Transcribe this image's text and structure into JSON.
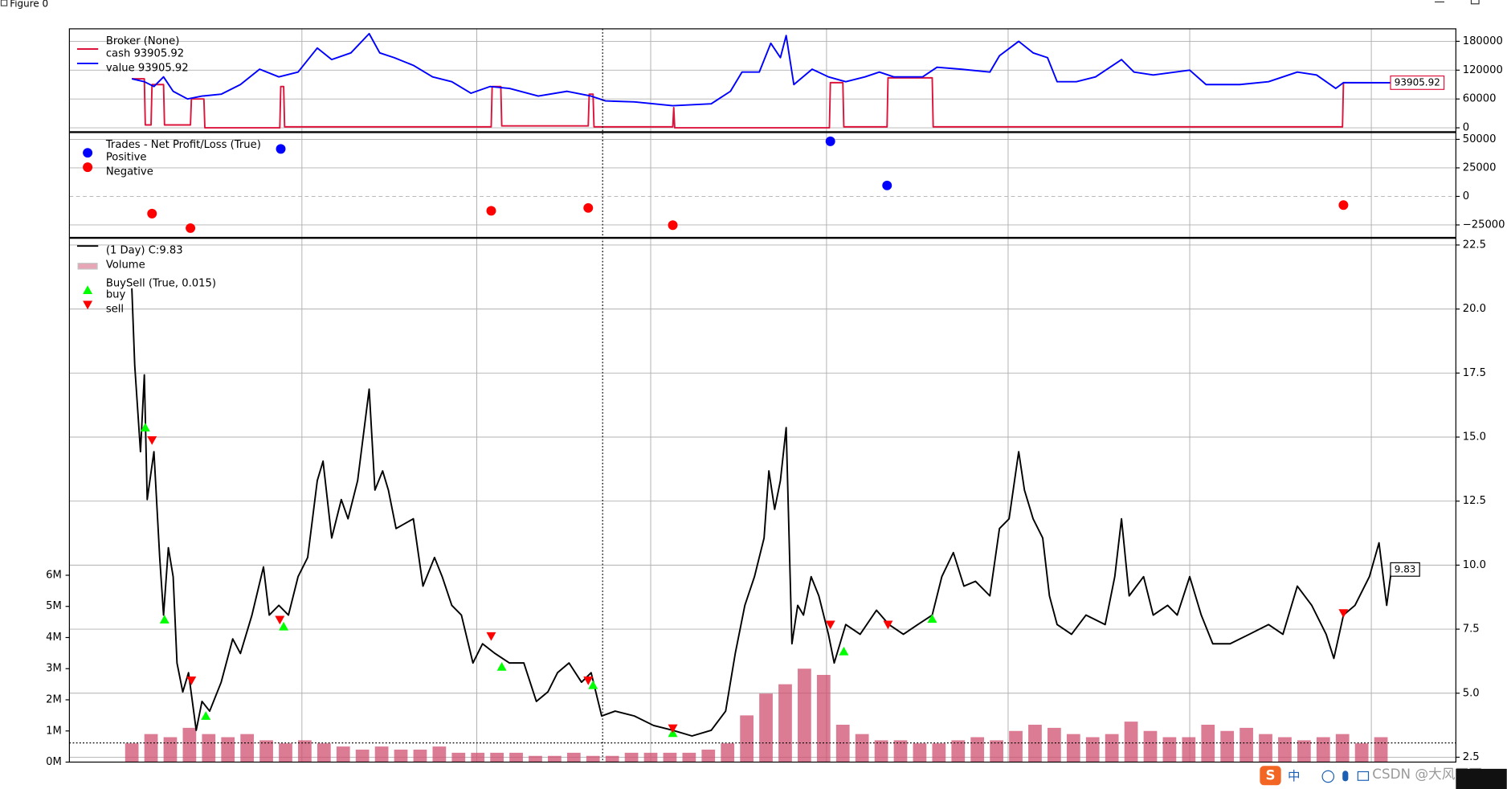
{
  "window_title": "Figure 0",
  "watermark": "CSDN @大风哥哥",
  "ime_label": "中",
  "chart_data": [
    {
      "type": "line",
      "legend_title": "Broker (None)",
      "xlim": [
        -65,
        1378
      ],
      "xticks": [
        177,
        359,
        540,
        723,
        912,
        1101,
        1290
      ],
      "ylim": [
        -8000,
        206000
      ],
      "yticks": [
        0,
        60000,
        120000,
        180000
      ],
      "grid": true,
      "last_label": {
        "value": 93905.92,
        "label": "93905.92"
      },
      "series": [
        {
          "name": "cash 93905.92",
          "color": "#dc143c",
          "kind": "line",
          "x": [
            0,
            13,
            14,
            20,
            21,
            33,
            34,
            61,
            62,
            75,
            76,
            154,
            155,
            158,
            159,
            374,
            375,
            384,
            385,
            475,
            476,
            480,
            481,
            563,
            564,
            565,
            726,
            727,
            740,
            741,
            786,
            787,
            833,
            834,
            1260,
            1261,
            1311
          ],
          "values": [
            102000,
            102000,
            6000,
            6000,
            90000,
            90000,
            6000,
            6000,
            60000,
            60000,
            0,
            0,
            86000,
            86000,
            2000,
            2000,
            86000,
            86000,
            4000,
            4000,
            70000,
            70000,
            2000,
            2000,
            42000,
            0,
            0,
            94000,
            94000,
            2000,
            2000,
            104000,
            104000,
            2000,
            2000,
            93905.92,
            93905.92
          ]
        },
        {
          "name": "value 93905.92",
          "color": "#0000ff",
          "kind": "line",
          "x": [
            0,
            13,
            23,
            33,
            43,
            58,
            73,
            93,
            113,
            133,
            153,
            173,
            193,
            208,
            228,
            247,
            258,
            273,
            293,
            313,
            333,
            353,
            373,
            393,
            423,
            453,
            478,
            493,
            523,
            563,
            603,
            623,
            635,
            653,
            665,
            675,
            681,
            689,
            708,
            725,
            743,
            763,
            778,
            793,
            823,
            838,
            863,
            893,
            903,
            923,
            938,
            953,
            963,
            983,
            1003,
            1030,
            1043,
            1063,
            1101,
            1118,
            1153,
            1183,
            1213,
            1233,
            1253,
            1261,
            1311
          ],
          "values": [
            102000,
            96000,
            86000,
            106000,
            76000,
            60000,
            66000,
            70000,
            90000,
            122000,
            106000,
            116000,
            166000,
            142000,
            156000,
            196000,
            156000,
            146000,
            130000,
            106000,
            96000,
            72000,
            86000,
            82000,
            66000,
            76000,
            66000,
            56000,
            54000,
            46000,
            50000,
            76000,
            116000,
            116000,
            176000,
            146000,
            192000,
            90000,
            122000,
            106000,
            96000,
            106000,
            116000,
            106000,
            106000,
            126000,
            122000,
            116000,
            150000,
            180000,
            156000,
            146000,
            96000,
            96000,
            106000,
            142000,
            116000,
            110000,
            120000,
            90000,
            90000,
            96000,
            116000,
            110000,
            82000,
            94000,
            93905.92
          ]
        }
      ]
    },
    {
      "type": "scatter",
      "legend_title": "Trades - Net Profit/Loss (True)",
      "xlim": [
        -65,
        1378
      ],
      "xticks": [
        177,
        359,
        540,
        723,
        912,
        1101,
        1290
      ],
      "ylim": [
        -35900,
        55900
      ],
      "yticks": [
        50000,
        25000,
        0,
        {
          "value": -25000,
          "label": "−25000"
        }
      ],
      "grid": true,
      "series": [
        {
          "name": "Positive",
          "color": "#0000ff",
          "kind": "marker",
          "marker": "o",
          "x": [
            155,
            727,
            786
          ],
          "values": [
            41600,
            48300,
            9600
          ]
        },
        {
          "name": "Negative",
          "color": "#ff0000",
          "kind": "marker",
          "marker": "o",
          "x": [
            21,
            61,
            374,
            475,
            563,
            1261
          ],
          "values": [
            -15100,
            -27800,
            -12600,
            -10100,
            -25200,
            -7600
          ]
        }
      ]
    },
    {
      "type": "line",
      "legend_subtitle": "BuySell (True, 0.015)",
      "xlim": [
        -65,
        1378
      ],
      "xticks": [
        177,
        359,
        540,
        723,
        912,
        1101,
        1290
      ],
      "ylim": [
        2.31,
        22.76
      ],
      "yticks": [
        2.5,
        {
          "value": 5,
          "label": "5.0"
        },
        7.5,
        {
          "value": 10,
          "label": "10.0"
        },
        12.5,
        {
          "value": 15,
          "label": "15.0"
        },
        17.5,
        {
          "value": 20,
          "label": "20.0"
        },
        22.5
      ],
      "y2lim": [
        0,
        16820000
      ],
      "y2ticks": [
        {
          "value": 0,
          "label": "0M"
        },
        {
          "value": 1000000,
          "label": "1M"
        },
        {
          "value": 2000000,
          "label": "2M"
        },
        {
          "value": 3000000,
          "label": "3M"
        },
        {
          "value": 4000000,
          "label": "4M"
        },
        {
          "value": 5000000,
          "label": "5M"
        },
        {
          "value": 6000000,
          "label": "6M"
        }
      ],
      "grid": true,
      "last_label": {
        "value": 9.83,
        "label": "9.83"
      },
      "cursor": {
        "x": 490,
        "y": 3.06
      },
      "series": [
        {
          "name": "(1 Day) C:9.83",
          "color": "#000000",
          "kind": "line",
          "x": [
            0,
            3,
            9,
            13,
            16,
            23,
            29,
            33,
            38,
            43,
            47,
            53,
            59,
            67,
            73,
            81,
            93,
            105,
            113,
            125,
            137,
            143,
            153,
            163,
            173,
            183,
            193,
            199,
            208,
            218,
            225,
            235,
            247,
            253,
            261,
            267,
            275,
            293,
            303,
            315,
            323,
            333,
            343,
            355,
            365,
            378,
            393,
            408,
            421,
            433,
            443,
            455,
            468,
            478,
            489,
            503,
            523,
            543,
            563,
            583,
            603,
            618,
            628,
            638,
            648,
            658,
            663,
            669,
            675,
            681,
            687,
            693,
            699,
            707,
            715,
            725,
            731,
            743,
            758,
            775,
            788,
            803,
            818,
            833,
            843,
            855,
            866,
            878,
            893,
            903,
            913,
            923,
            929,
            938,
            948,
            955,
            963,
            978,
            993,
            1013,
            1023,
            1030,
            1038,
            1053,
            1063,
            1078,
            1088,
            1101,
            1113,
            1125,
            1143,
            1163,
            1183,
            1198,
            1213,
            1228,
            1243,
            1251,
            1261,
            1273,
            1288,
            1298,
            1306,
            1311
          ],
          "values": [
            20.81,
            17.8,
            14.43,
            17.43,
            12.56,
            14.43,
            10.3,
            8.05,
            10.68,
            9.55,
            6.18,
            5.05,
            5.8,
            3.55,
            4.68,
            4.3,
            5.43,
            7.12,
            6.55,
            8.05,
            9.93,
            8.05,
            8.43,
            8.05,
            9.55,
            10.3,
            13.3,
            14.06,
            11.06,
            12.56,
            11.81,
            13.3,
            16.87,
            12.93,
            13.68,
            12.93,
            11.43,
            11.81,
            9.18,
            10.3,
            9.55,
            8.43,
            8.05,
            6.18,
            6.93,
            6.55,
            6.18,
            6.18,
            4.68,
            5.05,
            5.8,
            6.18,
            5.43,
            5.8,
            4.11,
            4.3,
            4.11,
            3.74,
            3.55,
            3.33,
            3.55,
            4.3,
            6.55,
            8.43,
            9.55,
            11.06,
            13.68,
            12.18,
            13.3,
            15.37,
            6.93,
            8.43,
            8.05,
            9.55,
            8.8,
            7.3,
            6.18,
            7.68,
            7.3,
            8.24,
            7.68,
            7.3,
            7.68,
            8.05,
            9.55,
            10.49,
            9.18,
            9.37,
            8.8,
            11.43,
            11.81,
            14.43,
            12.93,
            11.81,
            11.06,
            8.8,
            7.68,
            7.3,
            8.05,
            7.68,
            9.55,
            11.81,
            8.8,
            9.55,
            8.05,
            8.43,
            8.05,
            9.55,
            8.05,
            6.93,
            6.93,
            7.3,
            7.68,
            7.3,
            9.18,
            8.43,
            7.3,
            6.36,
            8.05,
            8.43,
            9.55,
            10.87,
            8.43,
            9.83
          ]
        },
        {
          "name": "Volume",
          "color": "#d05070",
          "kind": "bar",
          "axis": "y2",
          "x": [
            0,
            20,
            40,
            60,
            80,
            100,
            120,
            140,
            160,
            180,
            200,
            220,
            240,
            260,
            280,
            300,
            320,
            340,
            360,
            380,
            400,
            420,
            440,
            460,
            480,
            500,
            520,
            540,
            560,
            580,
            600,
            620,
            640,
            660,
            680,
            700,
            720,
            740,
            760,
            780,
            800,
            820,
            840,
            860,
            880,
            900,
            920,
            940,
            960,
            980,
            1000,
            1020,
            1040,
            1060,
            1080,
            1100,
            1120,
            1140,
            1160,
            1180,
            1200,
            1220,
            1240,
            1260,
            1280,
            1300
          ],
          "values": [
            600000,
            900000,
            800000,
            1100000,
            900000,
            800000,
            900000,
            700000,
            600000,
            700000,
            600000,
            500000,
            400000,
            500000,
            400000,
            400000,
            500000,
            300000,
            300000,
            300000,
            300000,
            200000,
            200000,
            300000,
            200000,
            200000,
            300000,
            300000,
            300000,
            300000,
            400000,
            600000,
            1500000,
            2200000,
            2500000,
            3000000,
            2800000,
            1200000,
            900000,
            700000,
            700000,
            600000,
            600000,
            700000,
            800000,
            700000,
            1000000,
            1200000,
            1100000,
            900000,
            800000,
            900000,
            1300000,
            1000000,
            800000,
            800000,
            1200000,
            1000000,
            1100000,
            900000,
            800000,
            700000,
            800000,
            900000,
            600000,
            800000
          ]
        },
        {
          "name": "buy",
          "color": "#00ff00",
          "kind": "marker",
          "marker": "^",
          "x": [
            14,
            34,
            77,
            158,
            385,
            480,
            563,
            741,
            833
          ],
          "values": [
            15.37,
            7.87,
            4.11,
            7.6,
            6.03,
            5.31,
            3.44,
            6.63,
            7.9
          ]
        },
        {
          "name": "sell",
          "color": "#ff0000",
          "kind": "marker",
          "marker": "v",
          "x": [
            21,
            62,
            154,
            374,
            475,
            563,
            727,
            787,
            1261
          ],
          "values": [
            14.88,
            5.5,
            7.87,
            7.23,
            5.5,
            3.63,
            7.68,
            7.68,
            8.13
          ]
        }
      ]
    }
  ]
}
